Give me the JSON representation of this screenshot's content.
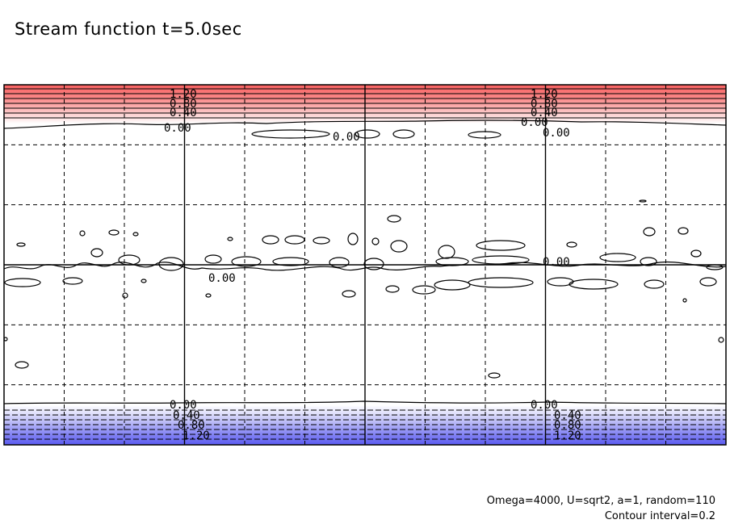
{
  "header": {
    "title": "Stream function t=5.0sec"
  },
  "footer": {
    "params": "Omega=4000, U=sqrt2, a=1, random=110",
    "interval": "Contour interval=0.2"
  },
  "chart_data": {
    "type": "contour",
    "title": "Stream function t=5.0sec",
    "xlabel": "",
    "ylabel": "",
    "grid": true,
    "grid_style": "dashed",
    "x_divisions": 12,
    "y_divisions": 6,
    "contour_interval": 0.2,
    "colors": {
      "positive_max": "#f86060",
      "negative_max": "#5a5af0",
      "line": "#000000"
    },
    "top_contour_labels": [
      "1.20",
      "0.80",
      "0.40",
      "0.00"
    ],
    "bottom_contour_labels": [
      "0.00",
      "0.40",
      "0.80",
      "1.20"
    ],
    "mid_contour_labels": [
      "0.00",
      "0.00",
      "0.00",
      "0.00",
      "0.00"
    ]
  }
}
